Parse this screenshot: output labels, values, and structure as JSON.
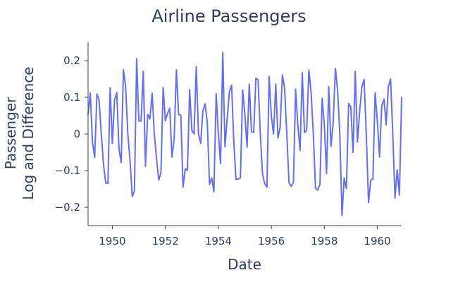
{
  "chart_data": {
    "type": "line",
    "title": "Airline Passengers",
    "xlabel": "Date",
    "ylabel_lines": [
      "Passenger",
      "Log and Difference"
    ],
    "x_start": "1949-02",
    "x_step": "month",
    "xlim": [
      "1949-02",
      "1960-12"
    ],
    "ylim": [
      -0.25,
      0.25
    ],
    "xticks": [
      "1950",
      "1952",
      "1954",
      "1956",
      "1958",
      "1960"
    ],
    "yticks": [
      "0.2",
      "0.1",
      "0",
      "−0.1",
      "−0.2"
    ],
    "grid": false,
    "line_color": "#636efa",
    "series": [
      {
        "values": [
          0.053,
          0.112,
          -0.023,
          -0.064,
          0.109,
          0.092,
          0.0,
          -0.084,
          -0.134,
          -0.135,
          0.126,
          -0.026,
          0.093,
          0.113,
          -0.041,
          -0.078,
          0.175,
          0.13,
          0.0,
          -0.072,
          -0.171,
          -0.155,
          0.205,
          0.035,
          0.035,
          0.171,
          -0.088,
          0.053,
          0.041,
          0.111,
          0.0,
          -0.067,
          -0.126,
          -0.105,
          0.127,
          0.036,
          0.056,
          0.07,
          -0.063,
          -0.012,
          0.175,
          0.053,
          0.051,
          -0.145,
          -0.095,
          -0.099,
          0.121,
          0.01,
          0.0,
          0.183,
          0.0,
          -0.025,
          0.063,
          0.082,
          0.03,
          -0.138,
          -0.12,
          -0.158,
          0.11,
          0.0,
          -0.081,
          0.222,
          -0.035,
          0.042,
          0.115,
          0.133,
          -0.023,
          -0.124,
          -0.123,
          -0.12,
          0.12,
          0.054,
          -0.036,
          0.136,
          0.006,
          0.004,
          0.152,
          0.148,
          0.0,
          -0.11,
          -0.136,
          -0.145,
          0.157,
          0.048,
          0.0,
          0.136,
          -0.011,
          0.019,
          0.161,
          0.126,
          0.0,
          -0.134,
          -0.143,
          -0.132,
          0.122,
          0.024,
          -0.045,
          0.167,
          0.004,
          0.01,
          0.174,
          0.114,
          0.0,
          -0.148,
          -0.153,
          -0.138,
          0.097,
          0.025,
          -0.108,
          0.129,
          -0.034,
          0.032,
          0.179,
          0.12,
          0.0,
          -0.222,
          -0.12,
          -0.149,
          0.083,
          0.073,
          -0.05,
          0.171,
          -0.022,
          0.062,
          0.128,
          0.149,
          0.0,
          -0.187,
          -0.127,
          -0.122,
          0.112,
          0.036,
          -0.063,
          0.077,
          0.095,
          0.025,
          0.128,
          0.15,
          0.0,
          -0.175,
          -0.098,
          -0.167,
          0.101
        ]
      }
    ]
  }
}
